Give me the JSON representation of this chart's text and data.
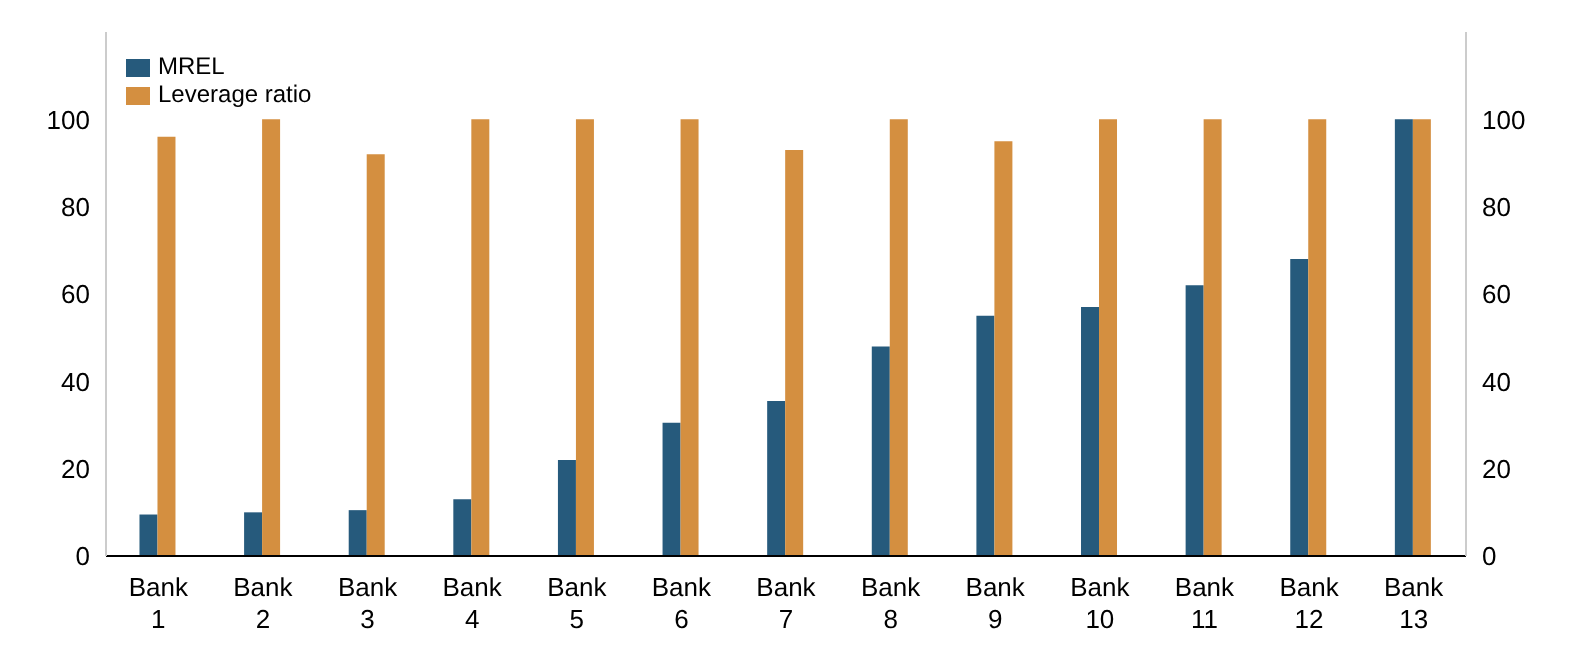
{
  "chart_data": {
    "type": "bar",
    "categories": [
      "Bank 1",
      "Bank 2",
      "Bank 3",
      "Bank 4",
      "Bank 5",
      "Bank 6",
      "Bank 7",
      "Bank 8",
      "Bank 9",
      "Bank 10",
      "Bank 11",
      "Bank 12",
      "Bank 13"
    ],
    "series": [
      {
        "name": "MREL",
        "color": "#265a7c",
        "values": [
          9.5,
          10,
          10.5,
          13,
          22,
          30.5,
          35.5,
          48,
          55,
          57,
          62,
          68,
          100
        ]
      },
      {
        "name": "Leverage ratio",
        "color": "#d48f40",
        "values": [
          96,
          100,
          92,
          100,
          100,
          100,
          93,
          100,
          95,
          100,
          100,
          100,
          100
        ]
      }
    ],
    "ylim": [
      0,
      120
    ],
    "yticks": [
      0,
      20,
      40,
      60,
      80,
      100
    ],
    "y2lim": [
      0,
      120
    ],
    "y2ticks": [
      0,
      20,
      40,
      60,
      80,
      100
    ],
    "grid": false,
    "legend": "top left"
  }
}
